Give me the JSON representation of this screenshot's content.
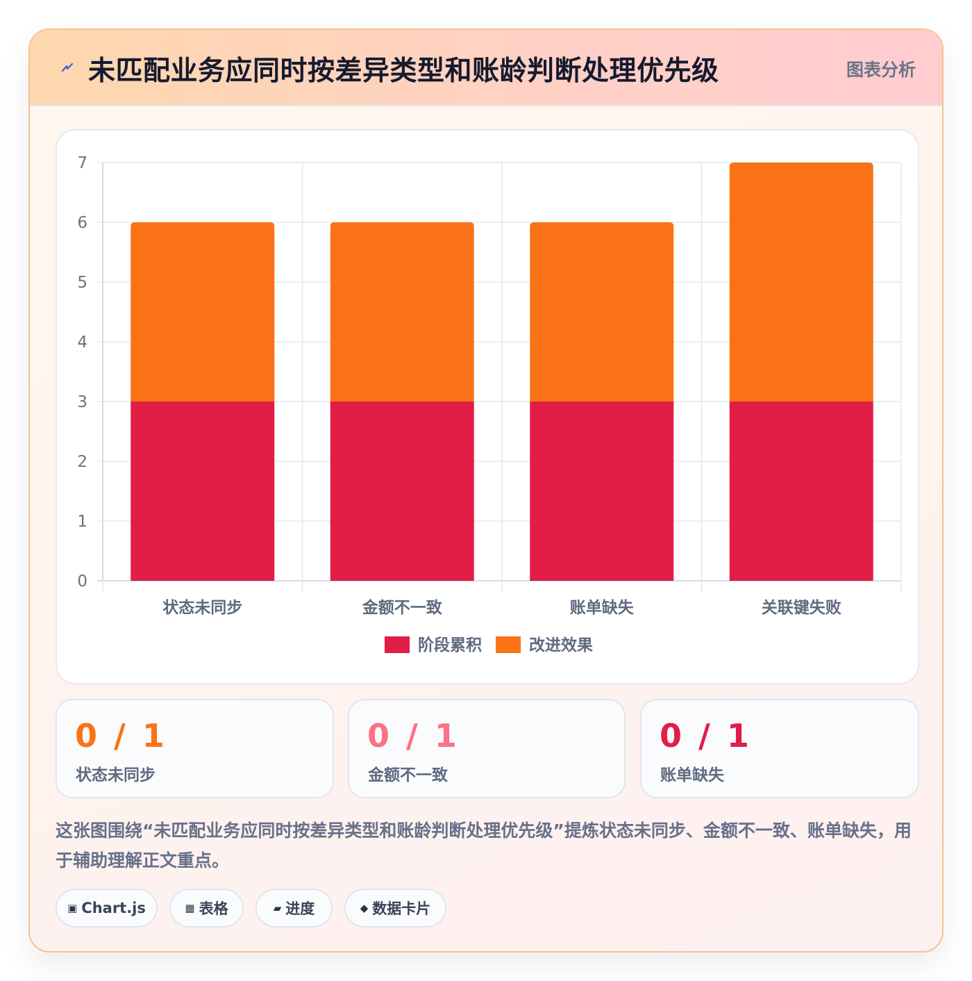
{
  "header": {
    "title": "未匹配业务应同时按差异类型和账龄判断处理优先级",
    "tag": "图表分析",
    "icon": "lightning-icon"
  },
  "chart_data": {
    "type": "bar",
    "stacked": true,
    "categories": [
      "状态未同步",
      "金额不一致",
      "账单缺失",
      "关联键失败"
    ],
    "series": [
      {
        "name": "阶段累积",
        "values": [
          3,
          3,
          3,
          3
        ],
        "color": "#e11d48"
      },
      {
        "name": "改进效果",
        "values": [
          3,
          3,
          3,
          4
        ],
        "color": "#f97316"
      }
    ],
    "ylim": [
      0,
      7
    ],
    "yticks": [
      "0",
      "1",
      "2",
      "3",
      "4",
      "5",
      "6",
      "7"
    ],
    "grid": true,
    "legend": "bottom"
  },
  "stats": [
    {
      "value": "0 / 1",
      "label": "状态未同步",
      "color": "#f97316"
    },
    {
      "value": "0 / 1",
      "label": "金额不一致",
      "color": "#fb7185"
    },
    {
      "value": "0 / 1",
      "label": "账单缺失",
      "color": "#e11d48"
    }
  ],
  "description": "这张图围绕“未匹配业务应同时按差异类型和账龄判断处理优先级”提炼状态未同步、金额不一致、账单缺失，用于辅助理解正文重点。",
  "chips": [
    {
      "icon": "▣",
      "label": "Chart.js"
    },
    {
      "icon": "▦",
      "label": "表格"
    },
    {
      "icon": "▰",
      "label": "进度"
    },
    {
      "icon": "◆",
      "label": "数据卡片"
    }
  ]
}
